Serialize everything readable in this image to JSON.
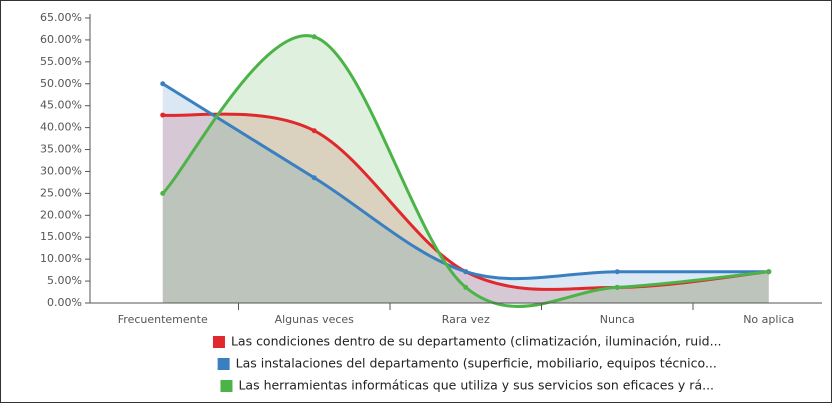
{
  "chart_data": {
    "type": "area-line",
    "categories": [
      "Frecuentemente",
      "Algunas veces",
      "Rara vez",
      "Nunca",
      "No aplica"
    ],
    "series": [
      {
        "name": "Las condiciones dentro de su departamento (climatización, iluminación, ruid...",
        "color": "#e0292d",
        "values": [
          42.86,
          39.29,
          7.14,
          3.57,
          7.14
        ]
      },
      {
        "name": "Las instalaciones del departamento (superficie, mobiliario, equipos técnico...",
        "color": "#3a80c0",
        "values": [
          50,
          28.57,
          7.14,
          7.14,
          7.14
        ]
      },
      {
        "name": "Las herramientas informáticas que utiliza y sus servicios son eficaces y rá...",
        "color": "#4cb348",
        "values": [
          25,
          60.71,
          3.57,
          3.57,
          7.14
        ]
      }
    ],
    "ylim": [
      0,
      65
    ],
    "yticks": [
      {
        "value": 0,
        "label": "0.00%"
      },
      {
        "value": 5,
        "label": "5.00%"
      },
      {
        "value": 10,
        "label": "10.00%"
      },
      {
        "value": 15,
        "label": "15.00%"
      },
      {
        "value": 20,
        "label": "20.00%"
      },
      {
        "value": 25,
        "label": "25.00%"
      },
      {
        "value": 30,
        "label": "30.00%"
      },
      {
        "value": 35,
        "label": "35.00%"
      },
      {
        "value": 40,
        "label": "40.00%"
      },
      {
        "value": 45,
        "label": "45.00%"
      },
      {
        "value": 50,
        "label": "50.00%"
      },
      {
        "value": 55,
        "label": "55.00%"
      },
      {
        "value": 60,
        "label": "60.00%"
      },
      {
        "value": 65,
        "label": "65.00%"
      }
    ],
    "grid": false
  }
}
